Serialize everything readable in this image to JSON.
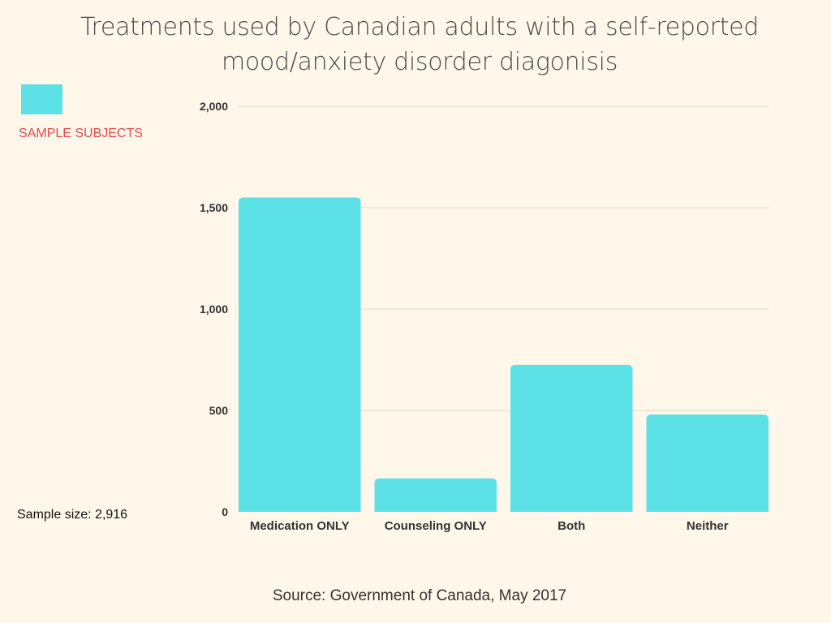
{
  "colors": {
    "background": "#fff7e9",
    "bar": "#5ce1e6",
    "legend_text": "#e5494d",
    "grid": "#e3d9c8"
  },
  "legend": {
    "label": "SAMPLE SUBJECTS"
  },
  "footer": {
    "sample_size": "Sample size: 2,916",
    "source": "Source: Government of Canada, May 2017"
  },
  "chart_data": {
    "type": "bar",
    "title": "Treatments used by Canadian adults with a self-reported mood/anxiety disorder diagonisis",
    "xlabel": "",
    "ylabel": "",
    "categories": [
      "Medication ONLY",
      "Counseling ONLY",
      "Both",
      "Neither"
    ],
    "series": [
      {
        "name": "SAMPLE SUBJECTS",
        "values": [
          1550,
          165,
          725,
          480
        ]
      }
    ],
    "ylim": [
      0,
      2000
    ],
    "yticks": [
      0,
      500,
      1000,
      1500,
      2000
    ],
    "ytick_labels": [
      "0",
      "500",
      "1,000",
      "1,500",
      "2,000"
    ],
    "grid": true,
    "legend_position": "top-left"
  }
}
